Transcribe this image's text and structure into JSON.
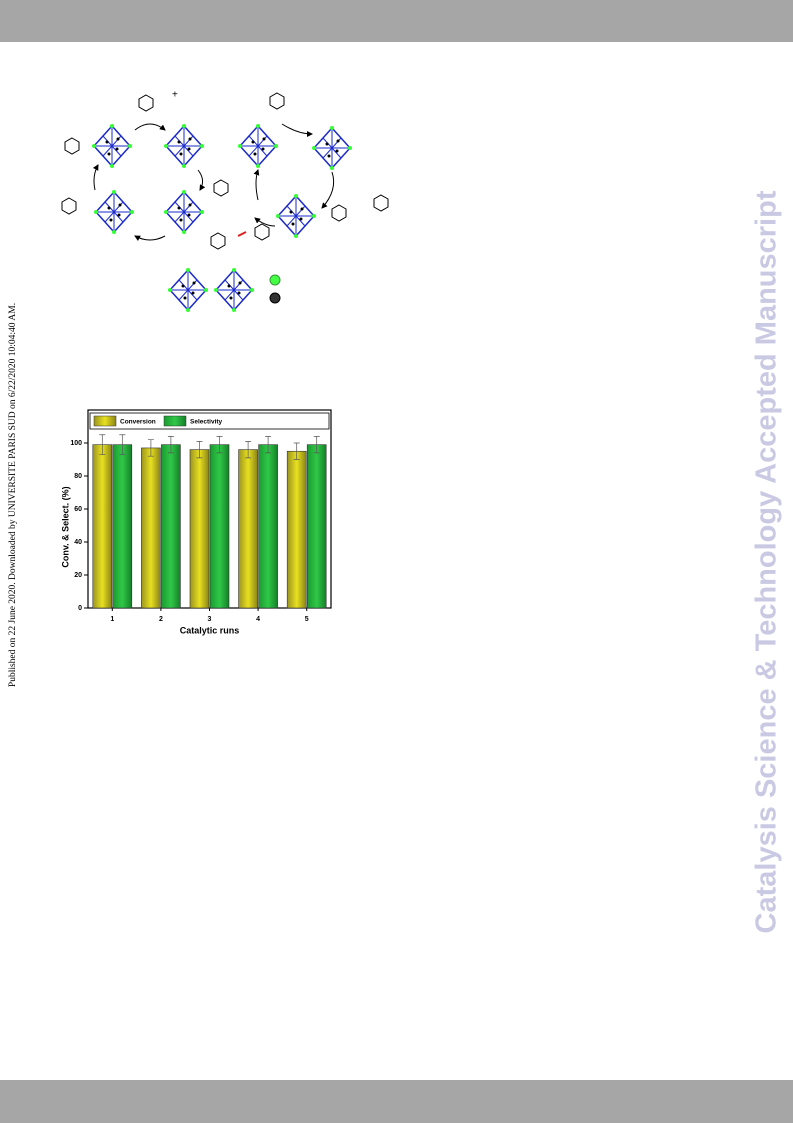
{
  "side_note": "Published on 22 June 2020. Downloaded by UNIVERSITE PARIS SUD on 6/22/2020 10:04:40 AM.",
  "watermark": "Catalysis Science & Technology Accepted Manuscript",
  "scheme": {
    "charge": "+"
  },
  "chart_data": {
    "type": "bar",
    "xlabel": "Catalytic runs",
    "ylabel": "Conv. & Select. (%)",
    "categories": [
      "1",
      "2",
      "3",
      "4",
      "5"
    ],
    "series": [
      {
        "name": "Conversion",
        "color": "#c8c020",
        "values": [
          99,
          97,
          96,
          96,
          95
        ],
        "errors": [
          6,
          5,
          5,
          5,
          5
        ]
      },
      {
        "name": "Selectivity",
        "color": "#22b040",
        "values": [
          99,
          99,
          99,
          99,
          99
        ],
        "errors": [
          6,
          5,
          5,
          5,
          5
        ]
      }
    ],
    "ylim": [
      0,
      120
    ],
    "yticks": [
      0,
      20,
      40,
      60,
      80,
      100
    ],
    "legend": "top"
  }
}
